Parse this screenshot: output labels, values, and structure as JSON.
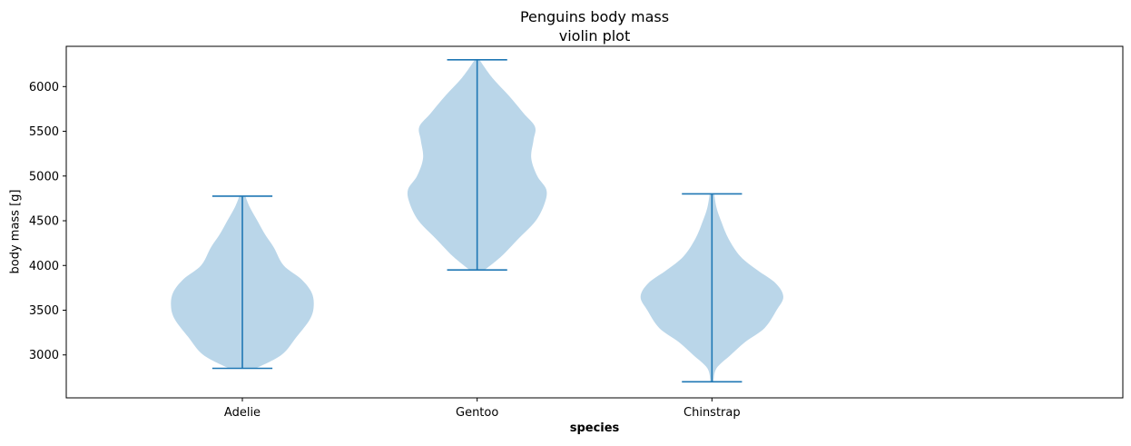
{
  "chart_data": {
    "type": "violin",
    "title": "Penguins body mass",
    "subtitle": "violin plot",
    "xlabel": "species",
    "ylabel": "body mass [g]",
    "categories": [
      "Adelie",
      "Gentoo",
      "Chinstrap"
    ],
    "ylim": [
      2520,
      6450
    ],
    "yticks": [
      3000,
      3500,
      4000,
      4500,
      5000,
      5500,
      6000
    ],
    "grid": false,
    "colors": {
      "fill": "#bad6e9",
      "line": "#1f77b4",
      "axis": "#000000"
    },
    "violins": [
      {
        "category": "Adelie",
        "min": 2850,
        "max": 4775,
        "density": [
          [
            2850,
            0.18
          ],
          [
            3000,
            0.52
          ],
          [
            3200,
            0.72
          ],
          [
            3400,
            0.9
          ],
          [
            3550,
            0.95
          ],
          [
            3700,
            0.92
          ],
          [
            3850,
            0.78
          ],
          [
            4000,
            0.55
          ],
          [
            4200,
            0.42
          ],
          [
            4350,
            0.3
          ],
          [
            4500,
            0.2
          ],
          [
            4650,
            0.1
          ],
          [
            4775,
            0.04
          ]
        ]
      },
      {
        "category": "Gentoo",
        "min": 3950,
        "max": 6300,
        "density": [
          [
            3950,
            0.1
          ],
          [
            4100,
            0.32
          ],
          [
            4300,
            0.55
          ],
          [
            4500,
            0.78
          ],
          [
            4700,
            0.9
          ],
          [
            4850,
            0.92
          ],
          [
            5000,
            0.8
          ],
          [
            5200,
            0.72
          ],
          [
            5400,
            0.75
          ],
          [
            5550,
            0.77
          ],
          [
            5700,
            0.62
          ],
          [
            5900,
            0.42
          ],
          [
            6100,
            0.2
          ],
          [
            6300,
            0.03
          ]
        ]
      },
      {
        "category": "Chinstrap",
        "min": 2700,
        "max": 4800,
        "density": [
          [
            2700,
            0.02
          ],
          [
            2850,
            0.06
          ],
          [
            3000,
            0.25
          ],
          [
            3150,
            0.45
          ],
          [
            3300,
            0.7
          ],
          [
            3500,
            0.86
          ],
          [
            3650,
            0.95
          ],
          [
            3800,
            0.85
          ],
          [
            3950,
            0.6
          ],
          [
            4100,
            0.38
          ],
          [
            4300,
            0.22
          ],
          [
            4500,
            0.12
          ],
          [
            4650,
            0.06
          ],
          [
            4800,
            0.03
          ]
        ]
      }
    ]
  }
}
